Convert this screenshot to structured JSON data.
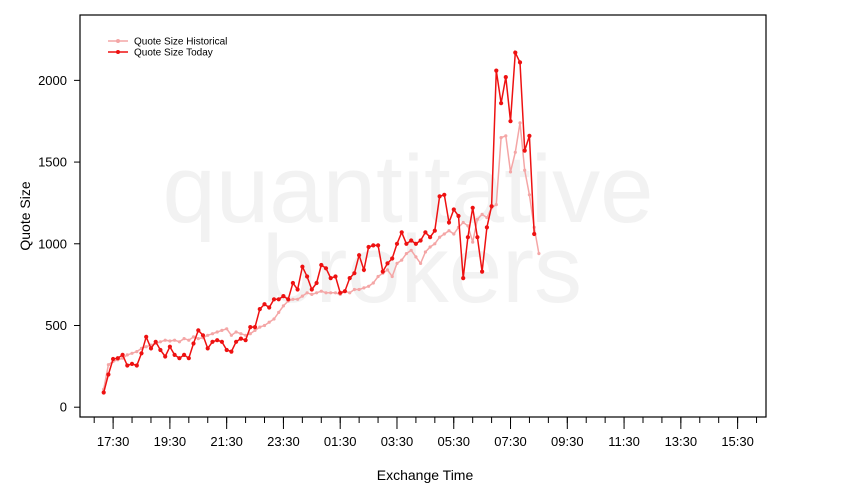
{
  "watermark": {
    "line1": "quantitative",
    "line2": "brokers"
  },
  "chart_data": {
    "type": "line",
    "xlabel": "Exchange Time",
    "ylabel": "Quote Size",
    "ylim": [
      -60,
      2400
    ],
    "yticks": [
      0,
      500,
      1000,
      1500,
      2000
    ],
    "x_tick_labels": [
      "17:30",
      "19:30",
      "21:30",
      "23:30",
      "01:30",
      "03:30",
      "05:30",
      "07:30",
      "09:30",
      "11:30",
      "13:30",
      "15:30"
    ],
    "x_tick_positions": [
      2,
      14,
      26,
      38,
      50,
      62,
      74,
      86,
      98,
      110,
      122,
      134
    ],
    "x_minor_step": 4,
    "x_range": [
      -5,
      140
    ],
    "legend_position": "top-left",
    "series": [
      {
        "name": "Quote Size Historical",
        "color": "#f4a6a6",
        "values": [
          110,
          260,
          280,
          290,
          300,
          320,
          330,
          340,
          360,
          370,
          380,
          390,
          400,
          410,
          405,
          410,
          400,
          420,
          410,
          430,
          420,
          425,
          440,
          450,
          460,
          470,
          480,
          440,
          460,
          450,
          440,
          450,
          470,
          490,
          500,
          520,
          540,
          580,
          620,
          650,
          660,
          660,
          680,
          700,
          690,
          700,
          710,
          700,
          700,
          700,
          690,
          710,
          700,
          720,
          720,
          730,
          740,
          760,
          800,
          820,
          840,
          800,
          880,
          900,
          940,
          960,
          920,
          880,
          950,
          980,
          1000,
          1040,
          1060,
          1080,
          1060,
          1100,
          1130,
          1110,
          1010,
          1150,
          1180,
          1160,
          1220,
          1240,
          1650,
          1660,
          1440,
          1560,
          1740,
          1450,
          1300,
          1100,
          940
        ]
      },
      {
        "name": "Quote Size Today",
        "color": "#ee1111",
        "values": [
          90,
          200,
          295,
          300,
          320,
          255,
          265,
          255,
          330,
          430,
          360,
          400,
          350,
          310,
          370,
          320,
          300,
          320,
          300,
          390,
          470,
          440,
          360,
          400,
          410,
          400,
          350,
          340,
          400,
          420,
          410,
          490,
          490,
          600,
          630,
          610,
          660,
          660,
          680,
          660,
          760,
          720,
          860,
          800,
          720,
          760,
          870,
          850,
          790,
          800,
          700,
          710,
          790,
          820,
          930,
          840,
          980,
          990,
          990,
          830,
          880,
          910,
          1000,
          1070,
          1000,
          1020,
          1000,
          1020,
          1070,
          1040,
          1080,
          1290,
          1300,
          1130,
          1210,
          1170,
          790,
          1040,
          1220,
          1040,
          830,
          1100,
          1230,
          2060,
          1860,
          2020,
          1750,
          2170,
          2110,
          1570,
          1660,
          1060
        ]
      }
    ]
  }
}
